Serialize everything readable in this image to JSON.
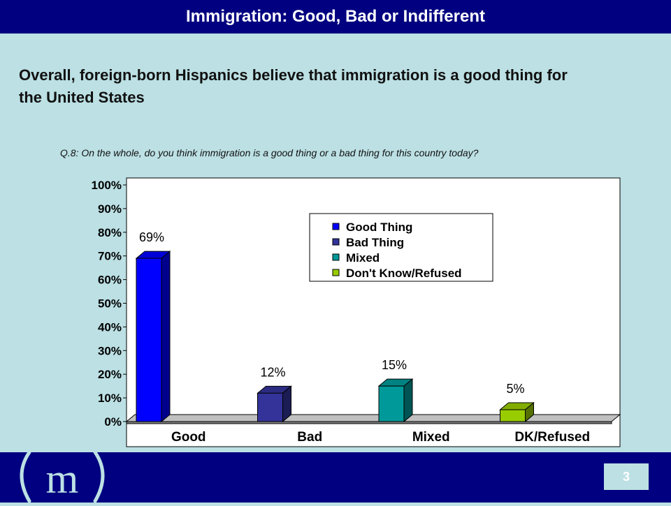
{
  "header": {
    "title": "Immigration: Good, Bad or Indifferent"
  },
  "headline": "Overall, foreign-born Hispanics believe that immigration is a good thing for the United States",
  "question": "Q.8:  On the whole, do you think immigration is a good thing or a bad thing for this country today?",
  "footer": {
    "page_number": "3",
    "logo_text": "(m)"
  },
  "colors": {
    "header_bg": "#000080",
    "slide_bg": "#bce0e4",
    "footer_bg": "#000080"
  },
  "chart_data": {
    "type": "bar",
    "categories": [
      "Good",
      "Bad",
      "Mixed",
      "DK/Refused"
    ],
    "values": [
      69,
      12,
      15,
      5
    ],
    "value_labels": [
      "69%",
      "12%",
      "15%",
      "5%"
    ],
    "colors": [
      "#0000ff",
      "#333399",
      "#009999",
      "#99cc00"
    ],
    "legend": [
      "Good Thing",
      "Bad Thing",
      "Mixed",
      "Don't Know/Refused"
    ],
    "legend_position": "top-right",
    "ylim": [
      0,
      100
    ],
    "yticks": [
      "0%",
      "10%",
      "20%",
      "30%",
      "40%",
      "50%",
      "60%",
      "70%",
      "80%",
      "90%",
      "100%"
    ],
    "grid": false,
    "style": "3d"
  }
}
